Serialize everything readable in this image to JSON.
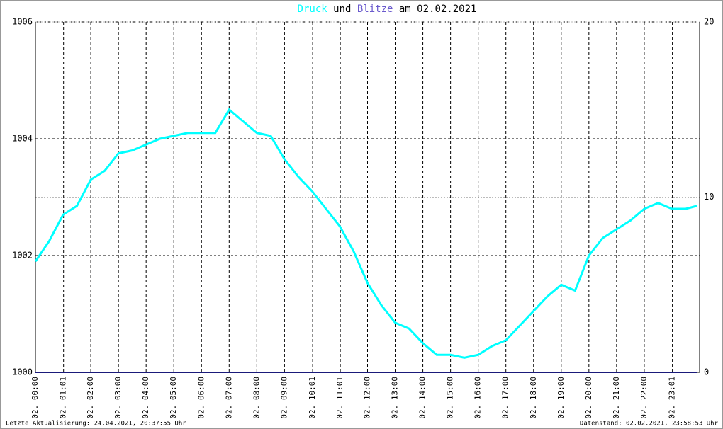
{
  "chart_data": {
    "type": "line",
    "title_connector": "und",
    "title_date": "am 02.02.2021",
    "xlim": [
      0,
      24
    ],
    "xticks": [
      {
        "value": 0,
        "label": "02. 00:00"
      },
      {
        "value": 1.0167,
        "label": "02. 01:01"
      },
      {
        "value": 2,
        "label": "02. 02:00"
      },
      {
        "value": 3,
        "label": "02. 03:00"
      },
      {
        "value": 4,
        "label": "02. 04:00"
      },
      {
        "value": 5,
        "label": "02. 05:00"
      },
      {
        "value": 6,
        "label": "02. 06:00"
      },
      {
        "value": 7,
        "label": "02. 07:00"
      },
      {
        "value": 8,
        "label": "02. 08:00"
      },
      {
        "value": 9,
        "label": "02. 09:00"
      },
      {
        "value": 10.0167,
        "label": "02. 10:01"
      },
      {
        "value": 11.0167,
        "label": "02. 11:01"
      },
      {
        "value": 12,
        "label": "02. 12:00"
      },
      {
        "value": 13,
        "label": "02. 13:00"
      },
      {
        "value": 14,
        "label": "02. 14:00"
      },
      {
        "value": 15,
        "label": "02. 15:00"
      },
      {
        "value": 16,
        "label": "02. 16:00"
      },
      {
        "value": 17,
        "label": "02. 17:00"
      },
      {
        "value": 18,
        "label": "02. 18:00"
      },
      {
        "value": 19,
        "label": "02. 19:00"
      },
      {
        "value": 20,
        "label": "02. 20:00"
      },
      {
        "value": 21,
        "label": "02. 21:00"
      },
      {
        "value": 22,
        "label": "02. 22:00"
      },
      {
        "value": 23.0167,
        "label": "02. 23:01"
      }
    ],
    "ylim": [
      1000,
      1006
    ],
    "yticks": [
      1000,
      1002,
      1004,
      1006
    ],
    "y2lim": [
      0,
      20
    ],
    "y2ticks": [
      0,
      10,
      20
    ],
    "grid": true,
    "series": [
      {
        "name": "Druck",
        "color": "#00ffff",
        "x": [
          0,
          0.5,
          1,
          1.5,
          2,
          2.5,
          3,
          3.5,
          4,
          4.5,
          5,
          5.5,
          6,
          6.5,
          7,
          7.5,
          8,
          8.5,
          9,
          9.5,
          10,
          10.5,
          11,
          11.5,
          12,
          12.5,
          13,
          13.5,
          14,
          14.5,
          15,
          15.5,
          16,
          16.5,
          17,
          17.5,
          18,
          18.5,
          19,
          19.5,
          20,
          20.5,
          21,
          21.5,
          22,
          22.5,
          23,
          23.5,
          23.9
        ],
        "values": [
          1001.9,
          1002.25,
          1002.7,
          1002.85,
          1003.3,
          1003.45,
          1003.75,
          1003.8,
          1003.9,
          1004.0,
          1004.05,
          1004.1,
          1004.1,
          1004.1,
          1004.5,
          1004.3,
          1004.1,
          1004.05,
          1003.65,
          1003.35,
          1003.1,
          1002.8,
          1002.5,
          1002.07,
          1001.53,
          1001.15,
          1000.85,
          1000.75,
          1000.5,
          1000.3,
          1000.3,
          1000.25,
          1000.3,
          1000.45,
          1000.55,
          1000.8,
          1001.05,
          1001.3,
          1001.5,
          1001.4,
          1002.0,
          1002.3,
          1002.45,
          1002.6,
          1002.8,
          1002.9,
          1002.8,
          1002.8,
          1002.85
        ]
      },
      {
        "name": "Blitze",
        "color": "#6a5acd",
        "line_color": "#1a1a7a",
        "axis": "y2",
        "x": [
          0,
          23.9
        ],
        "values": [
          0,
          0
        ]
      }
    ]
  },
  "footer": {
    "left": "Letzte Aktualisierung: 24.04.2021, 20:37:55 Uhr",
    "right": "Datenstand: 02.02.2021, 23:58:53 Uhr"
  }
}
